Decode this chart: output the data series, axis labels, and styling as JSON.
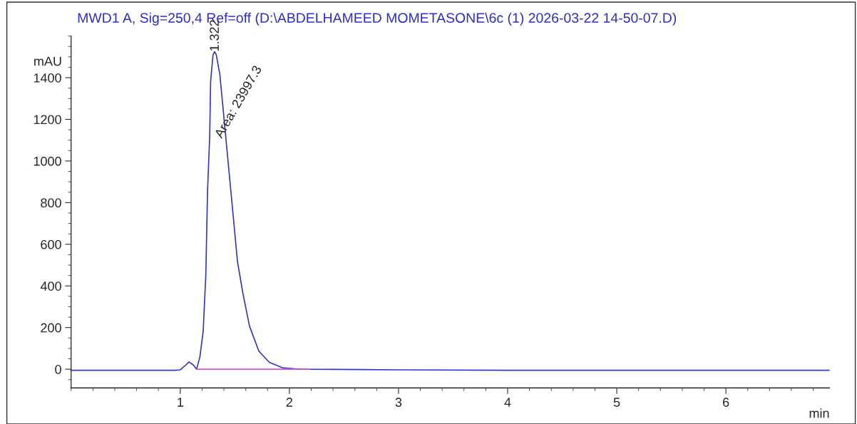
{
  "chart_data": {
    "type": "line",
    "title": "MWD1 A, Sig=250,4 Ref=off (D:\\ABDELHAMEED MOMETASONE\\6c (1) 2026-03-22 14-50-07.D)",
    "xlabel": "min",
    "ylabel": "mAU",
    "series": [
      {
        "color": "#3535c8",
        "x": [
          0,
          0.5,
          0.95,
          1.0,
          1.04,
          1.08,
          1.12,
          1.15,
          1.18,
          1.21,
          1.234,
          1.25,
          1.27,
          1.278,
          1.3,
          1.315,
          1.33,
          1.363,
          1.426,
          1.476,
          1.524,
          1.572,
          1.634,
          1.72,
          1.816,
          1.937,
          2.05,
          2.18,
          3,
          4,
          5,
          6,
          6.95
        ],
        "values": [
          -5,
          -5,
          -5,
          -3,
          15,
          35,
          20,
          0,
          60,
          182,
          450,
          854,
          1123,
          1380,
          1510,
          1525,
          1510,
          1415,
          1065,
          787,
          518,
          370,
          208,
          87,
          33,
          7,
          2,
          0,
          -3,
          -5,
          -5,
          -5,
          -5
        ]
      },
      {
        "color": "#e050d8",
        "x": [
          1.15,
          2.18
        ],
        "values": [
          0,
          0
        ]
      }
    ],
    "annotations": [
      {
        "text": "1.322",
        "x": 1.322,
        "y": 1525
      },
      {
        "text": "Area: 23997.3",
        "x": 1.4,
        "y": 1100
      }
    ],
    "xlim": [
      0,
      6.95
    ],
    "xticks": [
      1,
      2,
      3,
      4,
      5,
      6
    ],
    "ylim": [
      -90,
      1600
    ],
    "yticks": [
      0,
      200,
      400,
      600,
      800,
      1000,
      1200,
      1400
    ],
    "grid": false,
    "legend": false
  }
}
